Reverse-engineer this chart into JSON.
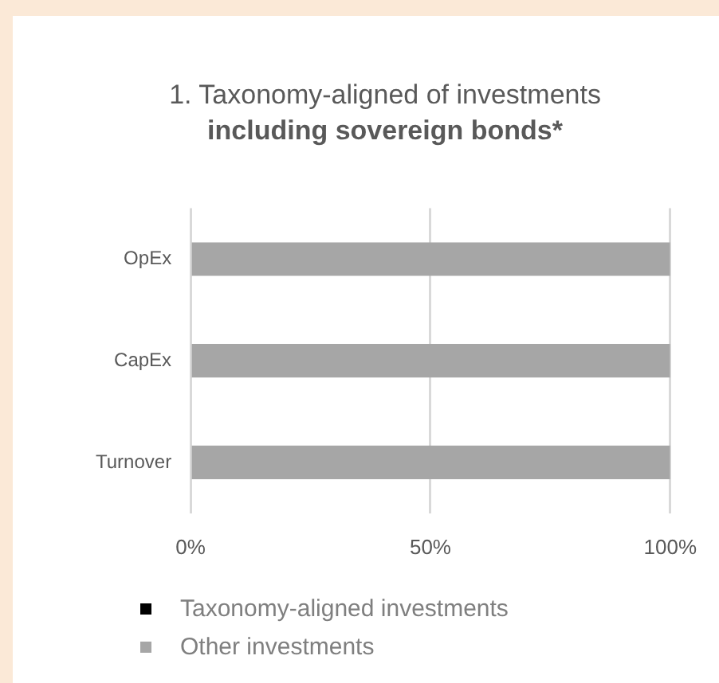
{
  "chart_data": {
    "type": "bar",
    "orientation": "horizontal",
    "stacked": true,
    "title": "1. Taxonomy-aligned of investments",
    "subtitle": "including sovereign bonds*",
    "categories": [
      "OpEx",
      "CapEx",
      "Turnover"
    ],
    "series": [
      {
        "name": "Taxonomy-aligned investments",
        "color": "#000000",
        "values": [
          0,
          0,
          0
        ]
      },
      {
        "name": "Other investments",
        "color": "#a6a6a6",
        "values": [
          100,
          100,
          100
        ]
      }
    ],
    "xlim": [
      0,
      100
    ],
    "xticks": [
      {
        "value": 0,
        "label": "0%"
      },
      {
        "value": 50,
        "label": "50%"
      },
      {
        "value": 100,
        "label": "100%"
      }
    ],
    "grid": "x",
    "legend": "bottom"
  }
}
